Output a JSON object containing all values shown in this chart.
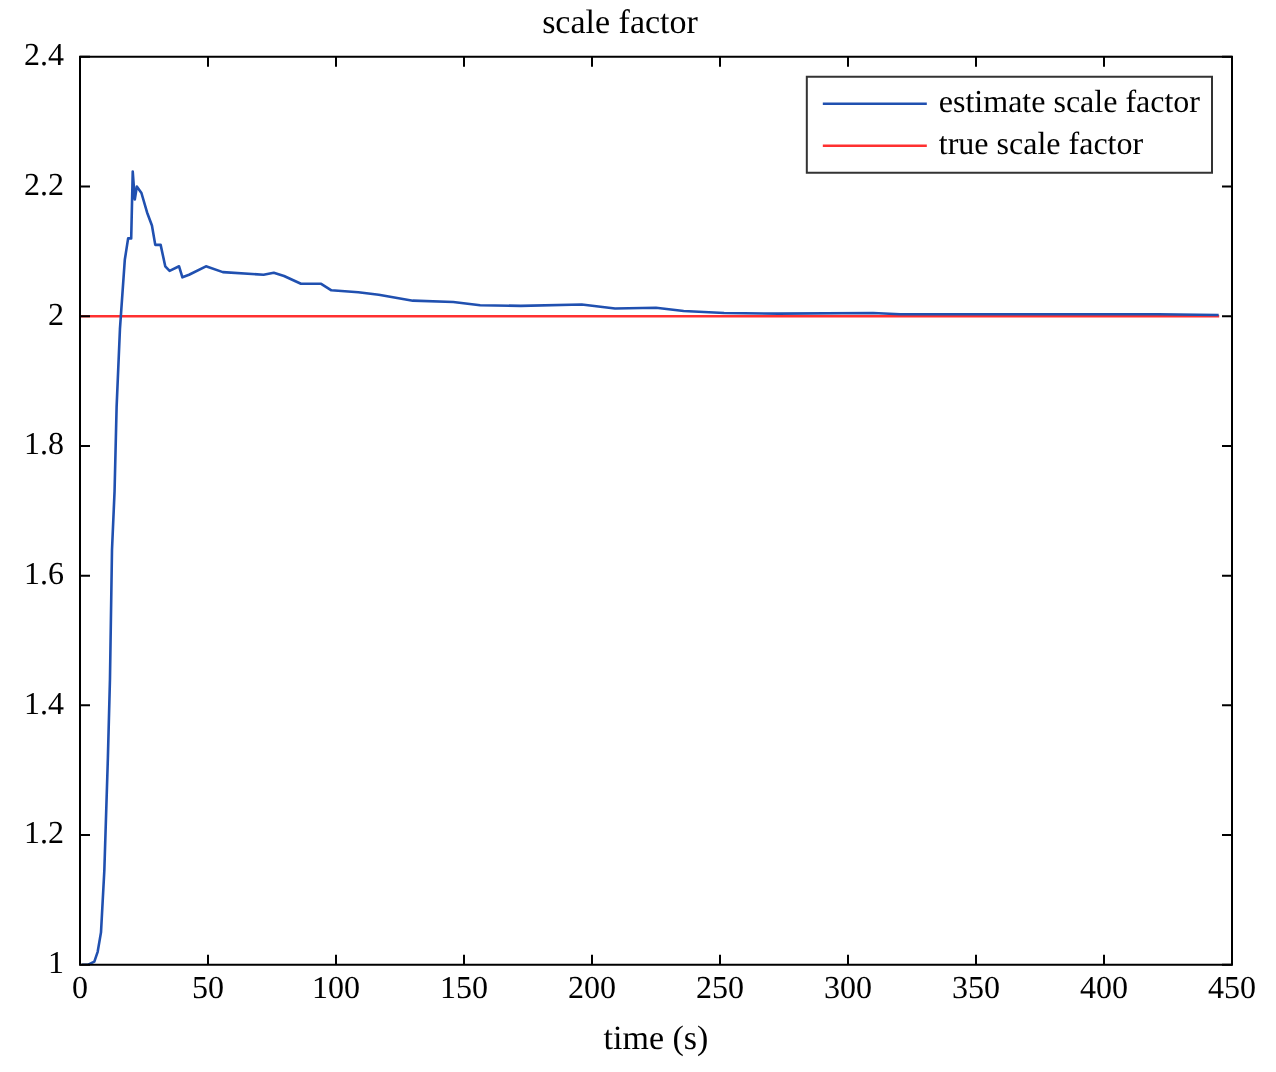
{
  "chart_data": {
    "type": "line",
    "title": "scale factor",
    "xlabel": "time (s)",
    "xlim": [
      0,
      450
    ],
    "xticks": [
      0,
      50,
      100,
      150,
      200,
      250,
      300,
      350,
      400,
      450
    ],
    "ylim": [
      1,
      2.4
    ],
    "yticks": [
      1,
      1.2,
      1.4,
      1.6,
      1.8,
      2,
      2.2,
      2.4
    ],
    "grid": false,
    "legend": "top right",
    "marker": "none",
    "line_style": "solid",
    "series": [
      {
        "name": "estimate scale factor",
        "color": "#2050b0",
        "x": [
          0.8,
          3,
          5.6,
          6.9,
          8.2,
          9.5,
          10.9,
          11.7,
          12.5,
          13.5,
          14.3,
          15.6,
          17.5,
          18.8,
          20,
          20.6,
          21.4,
          22.2,
          24,
          26.2,
          28.1,
          29.4,
          31.5,
          33.3,
          35,
          38.7,
          40,
          42.6,
          49.2,
          55.8,
          71.7,
          75.7,
          79.7,
          86.3,
          94.2,
          98.2,
          108.7,
          116.7,
          130,
          145.8,
          156.3,
          172.2,
          196,
          209,
          225,
          235.8,
          251.6,
          272.8,
          309.8,
          320.4,
          336,
          421,
          444.8
        ],
        "values": [
          1,
          1,
          1.005,
          1.02,
          1.05,
          1.145,
          1.32,
          1.44,
          1.64,
          1.73,
          1.86,
          1.98,
          2.087,
          2.12,
          2.12,
          2.223,
          2.18,
          2.2,
          2.19,
          2.16,
          2.14,
          2.11,
          2.11,
          2.077,
          2.07,
          2.077,
          2.06,
          2.064,
          2.077,
          2.068,
          2.064,
          2.067,
          2.062,
          2.05,
          2.05,
          2.04,
          2.037,
          2.033,
          2.024,
          2.022,
          2.017,
          2.016,
          2.018,
          2.012,
          2.013,
          2.008,
          2.005,
          2.004,
          2.005,
          2.003,
          2.003,
          2.003,
          2.002
        ]
      },
      {
        "name": "true scale factor",
        "color": "#ff3030",
        "x": [
          0,
          445
        ],
        "values": [
          2,
          2
        ]
      }
    ]
  }
}
